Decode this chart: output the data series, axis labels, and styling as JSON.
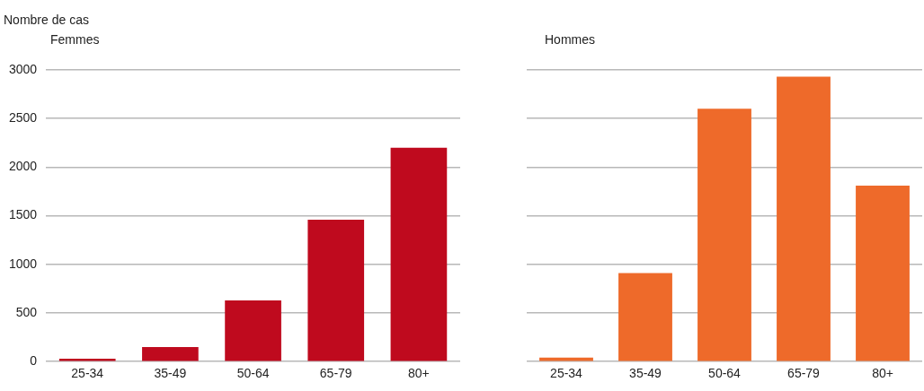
{
  "chart_data": [
    {
      "type": "bar",
      "title": "Femmes",
      "ylabel": "Nombre de cas",
      "categories": [
        "25-34",
        "35-49",
        "50-64",
        "65-79",
        "80+"
      ],
      "values": [
        30,
        150,
        630,
        1460,
        2200
      ],
      "color": "#bf0a1e",
      "ylim": [
        0,
        3000
      ],
      "yticks": [
        0,
        500,
        1000,
        1500,
        2000,
        2500,
        3000
      ],
      "grid": "y"
    },
    {
      "type": "bar",
      "title": "Hommes",
      "categories": [
        "25-34",
        "35-49",
        "50-64",
        "65-79",
        "80+"
      ],
      "values": [
        40,
        910,
        2600,
        2930,
        1810
      ],
      "color": "#ee6a2a",
      "ylim": [
        0,
        3000
      ],
      "yticks": [
        0,
        500,
        1000,
        1500,
        2000,
        2500,
        3000
      ],
      "grid": "y",
      "tick_labels": "x"
    }
  ]
}
